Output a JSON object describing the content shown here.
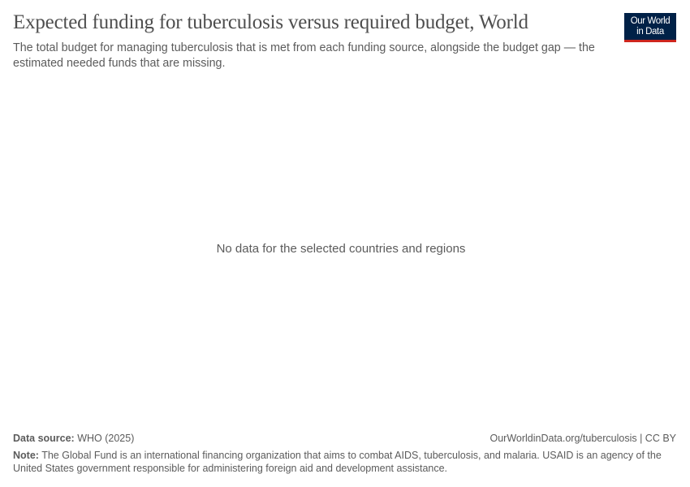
{
  "header": {
    "title": "Expected funding for tuberculosis versus required budget, World",
    "subtitle": "The total budget for managing tuberculosis that is met from each funding source, alongside the budget gap — the estimated needed funds that are missing.",
    "logo_line1": "Our World",
    "logo_line2": "in Data"
  },
  "chart_data": {
    "type": "bar",
    "title": "Expected funding for tuberculosis versus required budget, World",
    "series": [],
    "message": "No data for the selected countries and regions"
  },
  "footer": {
    "source_label": "Data source:",
    "source_value": "WHO (2025)",
    "url": "OurWorldinData.org/tuberculosis | CC BY",
    "note_label": "Note:",
    "note_text": "The Global Fund is an international financing organization that aims to combat AIDS, tuberculosis, and malaria. USAID is an agency of the United States government responsible for administering foreign aid and development assistance."
  },
  "colors": {
    "logo_bg": "#002147",
    "logo_accent": "#ce261e",
    "text": "#5b5b5b"
  }
}
